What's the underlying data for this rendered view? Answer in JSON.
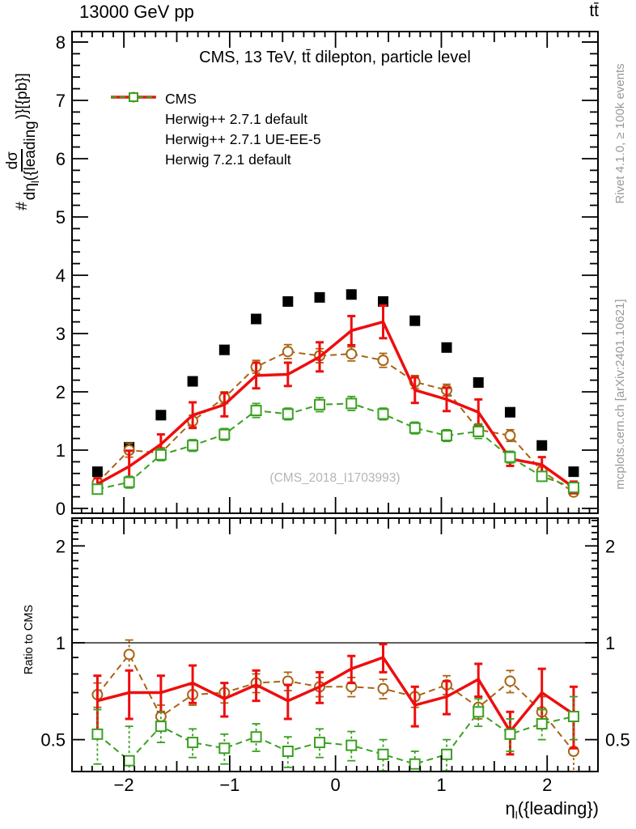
{
  "header": {
    "collision": "13000 GeV pp",
    "process": "tt̄"
  },
  "main_panel": {
    "title": "CMS, 13 TeV, tt̄ dilepton, particle level",
    "watermark": "(CMS_2018_I1703993)"
  },
  "legend": {
    "items": [
      {
        "label": "CMS",
        "marker": "filled-square",
        "line": "none",
        "color": "#000000"
      },
      {
        "label": "Herwig++ 2.7.1 default",
        "marker": "open-circle",
        "line": "dashed",
        "color": "#a86414"
      },
      {
        "label": "Herwig++ 2.7.1 UE-EE-5",
        "marker": "none",
        "line": "solid",
        "color": "#ee0e0e"
      },
      {
        "label": "Herwig 7.2.1 default",
        "marker": "open-square",
        "line": "dashed",
        "color": "#3aa020"
      }
    ]
  },
  "axes": {
    "y_main": {
      "prefix": "#",
      "numerator": "dσ",
      "den_main": "dη",
      "den_sub": "l",
      "den_rest": "({leading",
      "suffix": ")}[{pb}]"
    },
    "x": {
      "sym": "η",
      "sub": "l",
      "rest": "({leading})"
    },
    "ratio_label": "Ratio to CMS"
  },
  "side_notes": {
    "top": "Rivet 4.1.0, ≥ 100k events",
    "bottom": "mcplots.cern.ch [arXiv:2401.10621]"
  },
  "chart_data": {
    "type": "scatter",
    "title": "CMS, 13 TeV, tt̄ dilepton, particle level",
    "xlabel": "η_l({leading})",
    "xlim": [
      -2.49,
      2.48
    ],
    "xticks": {
      "values": [
        -2,
        -1,
        0,
        1,
        2
      ],
      "labels": [
        "−2",
        "−1",
        "0",
        "1",
        "2"
      ]
    },
    "x_bins": {
      "centers": [
        -2.25,
        -1.95,
        -1.65,
        -1.35,
        -1.05,
        -0.75,
        -0.45,
        -0.15,
        0.15,
        0.45,
        0.75,
        1.05,
        1.35,
        1.65,
        1.95,
        2.25
      ],
      "width": 0.3
    },
    "main_panel": {
      "ylabel": "#{dσ/dη_l({leading})}[{pb}]",
      "units": "pb",
      "ylim": [
        -0.083,
        8.18
      ],
      "yticks": [
        0,
        1,
        2,
        3,
        4,
        5,
        6,
        7,
        8
      ],
      "grid": false,
      "series": [
        {
          "name": "CMS",
          "color": "#000000",
          "marker": "filled-square",
          "line": "none",
          "values": [
            0.63,
            1.05,
            1.6,
            2.18,
            2.72,
            3.25,
            3.55,
            3.62,
            3.67,
            3.55,
            3.22,
            2.76,
            2.16,
            1.65,
            1.08,
            0.63
          ]
        },
        {
          "name": "Herwig++ 2.7.1 default",
          "color": "#a86414",
          "marker": "open-circle",
          "line": "dashed",
          "values": [
            0.44,
            1.0,
            0.95,
            1.5,
            1.9,
            2.43,
            2.69,
            2.62,
            2.65,
            2.54,
            2.17,
            2.03,
            1.35,
            1.25,
            0.64,
            0.28
          ],
          "errors": [
            0.06,
            0.12,
            0.09,
            0.1,
            0.1,
            0.11,
            0.12,
            0.12,
            0.12,
            0.12,
            0.11,
            0.1,
            0.1,
            0.1,
            0.08,
            0.06
          ]
        },
        {
          "name": "Herwig++ 2.7.1 UE-EE-5",
          "color": "#ee0e0e",
          "marker": "none",
          "line": "solid",
          "values": [
            0.42,
            0.72,
            1.1,
            1.6,
            1.78,
            2.28,
            2.3,
            2.6,
            3.05,
            3.2,
            2.03,
            1.87,
            1.65,
            0.85,
            0.75,
            0.36
          ],
          "errors": [
            0.1,
            0.27,
            0.17,
            0.22,
            0.2,
            0.22,
            0.2,
            0.25,
            0.25,
            0.28,
            0.22,
            0.2,
            0.22,
            0.12,
            0.13,
            0.1
          ]
        },
        {
          "name": "Herwig 7.2.1 default",
          "color": "#3aa020",
          "marker": "open-square",
          "line": "dashed",
          "values": [
            0.33,
            0.45,
            0.92,
            1.08,
            1.27,
            1.68,
            1.62,
            1.78,
            1.8,
            1.62,
            1.38,
            1.25,
            1.32,
            0.88,
            0.55,
            0.36
          ],
          "errors": [
            0.08,
            0.1,
            0.1,
            0.1,
            0.1,
            0.12,
            0.1,
            0.12,
            0.12,
            0.1,
            0.1,
            0.1,
            0.12,
            0.1,
            0.08,
            0.08
          ]
        }
      ]
    },
    "ratio_panel": {
      "ylabel": "Ratio to CMS",
      "yscale": "log",
      "ylim": [
        0.398,
        2.44
      ],
      "yticks": {
        "values": [
          0.5,
          1,
          2
        ],
        "labels": [
          "0.5",
          "1",
          "2"
        ]
      },
      "reference_line": 1.0,
      "series": [
        {
          "name": "Herwig++ 2.7.1 default",
          "color": "#a86414",
          "marker": "open-circle",
          "line": "dashed",
          "values": [
            0.69,
            0.92,
            0.59,
            0.69,
            0.7,
            0.75,
            0.76,
            0.73,
            0.73,
            0.72,
            0.68,
            0.74,
            0.63,
            0.76,
            0.61,
            0.46
          ],
          "errors": [
            0.06,
            0.1,
            0.05,
            0.05,
            0.05,
            0.05,
            0.05,
            0.05,
            0.05,
            0.05,
            0.05,
            0.05,
            0.05,
            0.06,
            0.07,
            0.12
          ]
        },
        {
          "name": "Herwig++ 2.7.1 UE-EE-5",
          "color": "#ee0e0e",
          "marker": "none",
          "line": "solid",
          "values": [
            0.66,
            0.7,
            0.7,
            0.75,
            0.67,
            0.74,
            0.66,
            0.73,
            0.83,
            0.9,
            0.64,
            0.68,
            0.77,
            0.53,
            0.7,
            0.6
          ],
          "errors": [
            0.13,
            0.12,
            0.09,
            0.1,
            0.08,
            0.08,
            0.08,
            0.08,
            0.08,
            0.09,
            0.09,
            0.08,
            0.09,
            0.08,
            0.13,
            0.13
          ]
        },
        {
          "name": "Herwig 7.2.1 default",
          "color": "#3aa020",
          "marker": "open-square",
          "line": "dashed",
          "values": [
            0.52,
            0.43,
            0.55,
            0.49,
            0.47,
            0.51,
            0.46,
            0.49,
            0.48,
            0.45,
            0.42,
            0.45,
            0.61,
            0.52,
            0.56,
            0.59
          ],
          "errors": [
            0.1,
            0.12,
            0.06,
            0.05,
            0.05,
            0.05,
            0.05,
            0.05,
            0.05,
            0.05,
            0.04,
            0.05,
            0.06,
            0.06,
            0.06,
            0.09
          ]
        }
      ]
    }
  }
}
